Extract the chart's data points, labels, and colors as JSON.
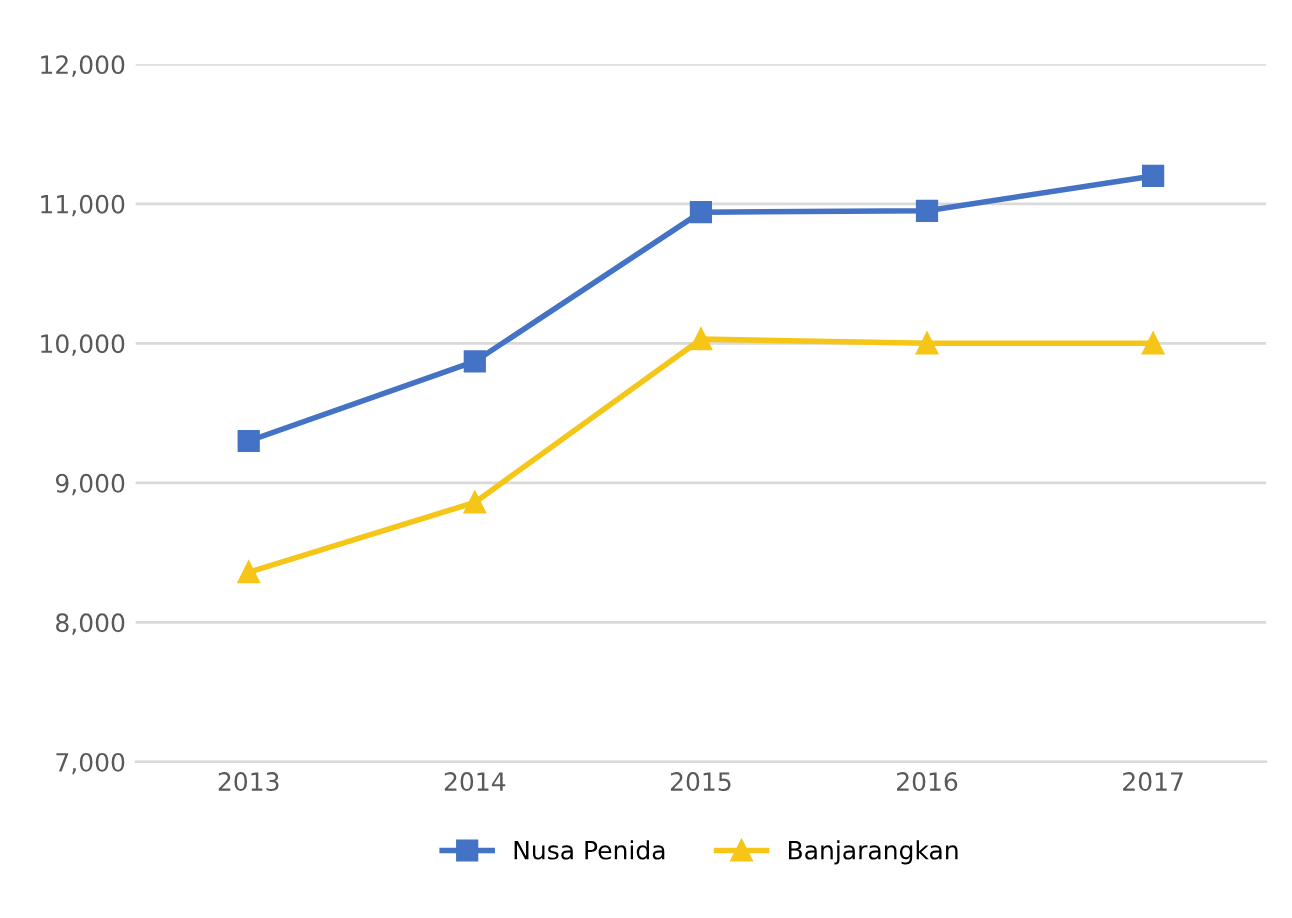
{
  "chart_data": {
    "type": "line",
    "categories": [
      "2013",
      "2014",
      "2015",
      "2016",
      "2017"
    ],
    "series": [
      {
        "name": "Nusa Penida",
        "color": "#4472c4",
        "marker": "square",
        "values": [
          9300,
          9870,
          10940,
          10950,
          11200
        ]
      },
      {
        "name": "Banjarangkan",
        "color": "#f5c518",
        "marker": "triangle",
        "values": [
          8360,
          8860,
          10030,
          10000,
          10000
        ]
      }
    ],
    "ylim": [
      7000,
      12000
    ],
    "yticks": [
      {
        "value": 7000,
        "label": "7,000"
      },
      {
        "value": 8000,
        "label": "8,000"
      },
      {
        "value": 9000,
        "label": "9,000"
      },
      {
        "value": 10000,
        "label": "10,000"
      },
      {
        "value": 11000,
        "label": "11,000"
      },
      {
        "value": 12000,
        "label": "12,000"
      }
    ],
    "grid": "y",
    "legend": "bottom",
    "line_style": "solid"
  }
}
